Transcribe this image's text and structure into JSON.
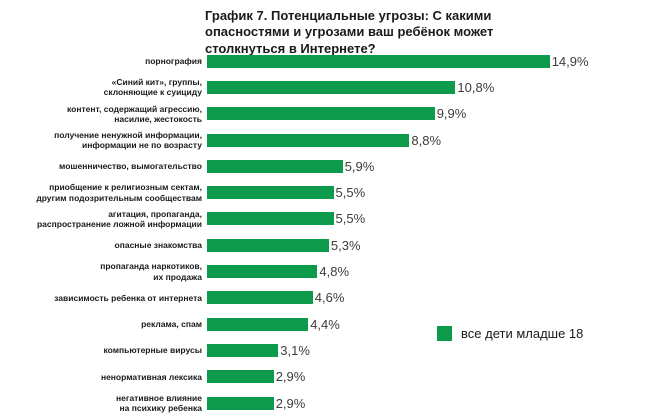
{
  "title": "График 7. Потенциальные угрозы: С какими\nопасностями и угрозами ваш ребёнок может\nстолкнуться в Интернете?",
  "legend": {
    "label": "все дети младше 18"
  },
  "colors": {
    "bar": "#0e9a4b",
    "title_text": "#1a1a1a",
    "label_text": "#1a1a1a",
    "value_text": "#3d3d3d",
    "background": "#ffffff"
  },
  "chart_data": {
    "type": "bar",
    "orientation": "horizontal",
    "title": "График 7. Потенциальные угрозы: С какими опасностями и угрозами ваш ребёнок может столкнуться в Интернете?",
    "categories": [
      "порнография",
      "«Синий кит», группы,\nсклоняющие к суициду",
      "контент, содержащий агрессию,\nнасилие, жестокость",
      "получение ненужной информации,\nинформации не по возрасту",
      "мошенничество, вымогательство",
      "приобщение к религиозным сектам,\nдругим подозрительным сообществам",
      "агитация, пропаганда,\nраспространение ложной информации",
      "опасные знакомства",
      "пропаганда наркотиков,\nих продажа",
      "зависимость ребенка от интернета",
      "реклама, спам",
      "компьютерные вирусы",
      "ненормативная лексика",
      "негативное влияние\nна психику ребенка"
    ],
    "values": [
      14.9,
      10.8,
      9.9,
      8.8,
      5.9,
      5.5,
      5.5,
      5.3,
      4.8,
      4.6,
      4.4,
      3.1,
      2.9,
      2.9
    ],
    "value_labels": [
      "14,9%",
      "10,8%",
      "9,9%",
      "8,8%",
      "5,9%",
      "5,5%",
      "5,5%",
      "5,3%",
      "4,8%",
      "4,6%",
      "4,4%",
      "3,1%",
      "2,9%",
      "2,9%"
    ],
    "unit": "%",
    "xlim": [
      0,
      15.5
    ],
    "grid": false,
    "legend_entries": [
      "все дети младше 18"
    ],
    "legend_position": "right-middle",
    "value_label_position": "end-of-bar"
  }
}
